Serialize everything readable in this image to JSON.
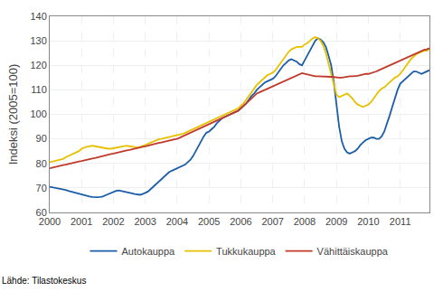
{
  "chart_data": {
    "type": "line",
    "y_label": "Indeksi (2005=100)",
    "annotations": [
      "Lähde: Tilastokeskus"
    ],
    "xlim": [
      2000.0,
      2011.917
    ],
    "xticks": [
      2000,
      2001,
      2002,
      2003,
      2004,
      2005,
      2006,
      2007,
      2008,
      2009,
      2010,
      2011
    ],
    "ylim": [
      60,
      140
    ],
    "yticks": [
      60,
      70,
      80,
      90,
      100,
      110,
      120,
      130,
      140
    ],
    "grid": true,
    "legend": "bottom",
    "x": [
      2000.0,
      2000.083,
      2000.167,
      2000.25,
      2000.333,
      2000.417,
      2000.5,
      2000.583,
      2000.667,
      2000.75,
      2000.833,
      2000.917,
      2001.0,
      2001.083,
      2001.167,
      2001.25,
      2001.333,
      2001.417,
      2001.5,
      2001.583,
      2001.667,
      2001.75,
      2001.833,
      2001.917,
      2002.0,
      2002.083,
      2002.167,
      2002.25,
      2002.333,
      2002.417,
      2002.5,
      2002.583,
      2002.667,
      2002.75,
      2002.833,
      2002.917,
      2003.0,
      2003.083,
      2003.167,
      2003.25,
      2003.333,
      2003.417,
      2003.5,
      2003.583,
      2003.667,
      2003.75,
      2003.833,
      2003.917,
      2004.0,
      2004.083,
      2004.167,
      2004.25,
      2004.333,
      2004.417,
      2004.5,
      2004.583,
      2004.667,
      2004.75,
      2004.833,
      2004.917,
      2005.0,
      2005.083,
      2005.167,
      2005.25,
      2005.333,
      2005.417,
      2005.5,
      2005.583,
      2005.667,
      2005.75,
      2005.833,
      2005.917,
      2006.0,
      2006.083,
      2006.167,
      2006.25,
      2006.333,
      2006.417,
      2006.5,
      2006.583,
      2006.667,
      2006.75,
      2006.833,
      2006.917,
      2007.0,
      2007.083,
      2007.167,
      2007.25,
      2007.333,
      2007.417,
      2007.5,
      2007.583,
      2007.667,
      2007.75,
      2007.833,
      2007.917,
      2008.0,
      2008.083,
      2008.167,
      2008.25,
      2008.333,
      2008.417,
      2008.5,
      2008.583,
      2008.667,
      2008.75,
      2008.833,
      2008.917,
      2009.0,
      2009.083,
      2009.167,
      2009.25,
      2009.333,
      2009.417,
      2009.5,
      2009.583,
      2009.667,
      2009.75,
      2009.833,
      2009.917,
      2010.0,
      2010.083,
      2010.167,
      2010.25,
      2010.333,
      2010.417,
      2010.5,
      2010.583,
      2010.667,
      2010.75,
      2010.833,
      2010.917,
      2011.0,
      2011.083,
      2011.167,
      2011.25,
      2011.333,
      2011.417,
      2011.5,
      2011.583,
      2011.667,
      2011.75,
      2011.833,
      2011.917
    ],
    "series": [
      {
        "name": "Autokauppa",
        "color": "#1a5da8",
        "values": [
          70.5,
          70.3,
          70.1,
          70.0,
          69.8,
          69.5,
          69.2,
          68.8,
          68.5,
          68.2,
          67.8,
          67.5,
          67.2,
          66.9,
          66.7,
          66.5,
          66.3,
          66.2,
          66.2,
          66.3,
          66.5,
          67.0,
          67.5,
          68.0,
          68.5,
          68.8,
          69.0,
          68.8,
          68.5,
          68.3,
          68.0,
          67.8,
          67.5,
          67.3,
          67.2,
          67.5,
          68.0,
          68.5,
          69.5,
          70.5,
          71.5,
          72.5,
          73.5,
          74.5,
          75.5,
          76.5,
          77.0,
          77.5,
          78.0,
          78.5,
          79.0,
          79.5,
          80.5,
          81.5,
          83.0,
          85.0,
          87.5,
          89.5,
          91.0,
          92.5,
          93.0,
          94.0,
          95.0,
          96.5,
          97.5,
          98.5,
          99.0,
          99.5,
          100.0,
          100.5,
          101.0,
          101.5,
          102.5,
          103.5,
          104.5,
          106.0,
          107.5,
          108.5,
          110.0,
          111.0,
          112.0,
          113.0,
          113.5,
          114.0,
          114.5,
          115.5,
          117.0,
          118.5,
          120.0,
          121.0,
          122.0,
          122.5,
          122.0,
          121.5,
          120.5,
          120.0,
          122.0,
          124.0,
          126.5,
          128.5,
          130.0,
          131.0,
          130.5,
          129.5,
          127.5,
          124.0,
          120.0,
          113.0,
          103.0,
          95.0,
          89.0,
          86.0,
          84.5,
          84.0,
          84.5,
          85.0,
          86.0,
          87.5,
          88.5,
          89.5,
          90.0,
          90.5,
          90.5,
          90.0,
          90.0,
          91.0,
          93.0,
          96.0,
          99.5,
          103.0,
          107.0,
          110.0,
          112.5,
          113.5,
          114.5,
          115.5,
          116.5,
          117.5,
          117.5,
          117.0,
          116.5,
          117.0,
          117.5,
          118.0
        ]
      },
      {
        "name": "Tukkukauppa",
        "color": "#e8c000",
        "values": [
          80.5,
          80.8,
          81.0,
          81.2,
          81.5,
          81.8,
          82.5,
          83.0,
          83.5,
          84.0,
          84.5,
          85.0,
          86.0,
          86.5,
          86.8,
          87.0,
          87.2,
          87.0,
          86.8,
          86.5,
          86.2,
          86.0,
          86.0,
          86.0,
          86.2,
          86.3,
          86.5,
          86.8,
          87.0,
          87.2,
          87.0,
          86.8,
          86.5,
          86.5,
          86.7,
          87.0,
          87.5,
          88.0,
          88.5,
          89.0,
          89.5,
          89.8,
          90.0,
          90.2,
          90.5,
          90.8,
          91.0,
          91.3,
          91.5,
          91.8,
          92.0,
          92.5,
          93.0,
          93.5,
          94.0,
          94.5,
          95.0,
          95.5,
          96.0,
          96.5,
          97.0,
          97.5,
          98.0,
          98.5,
          99.0,
          99.5,
          100.0,
          100.5,
          101.0,
          101.5,
          102.0,
          102.5,
          103.5,
          104.5,
          106.0,
          107.5,
          109.0,
          110.5,
          112.0,
          113.0,
          114.0,
          115.0,
          116.0,
          116.5,
          117.0,
          118.0,
          119.5,
          121.0,
          122.5,
          124.0,
          125.5,
          126.5,
          127.0,
          127.5,
          127.5,
          127.5,
          128.5,
          129.0,
          130.0,
          131.0,
          131.5,
          131.0,
          130.0,
          128.0,
          125.0,
          121.0,
          117.0,
          112.0,
          108.0,
          107.0,
          107.5,
          108.0,
          108.5,
          107.5,
          106.5,
          105.0,
          104.0,
          103.5,
          103.0,
          103.5,
          104.0,
          105.0,
          106.5,
          108.0,
          109.5,
          110.5,
          111.0,
          112.0,
          113.0,
          114.0,
          115.0,
          115.5,
          116.5,
          118.0,
          119.5,
          121.0,
          122.5,
          123.5,
          124.5,
          125.0,
          125.5,
          126.0,
          126.0,
          126.5
        ]
      },
      {
        "name": "Vähittäiskauppa",
        "color": "#c0392b",
        "values": [
          78.0,
          78.3,
          78.5,
          78.8,
          79.0,
          79.3,
          79.5,
          79.8,
          80.0,
          80.3,
          80.5,
          80.8,
          81.0,
          81.3,
          81.5,
          81.8,
          82.0,
          82.2,
          82.5,
          82.8,
          83.0,
          83.3,
          83.5,
          83.8,
          84.0,
          84.3,
          84.5,
          84.8,
          85.0,
          85.3,
          85.5,
          85.8,
          86.0,
          86.3,
          86.5,
          86.8,
          87.0,
          87.3,
          87.5,
          87.8,
          88.0,
          88.3,
          88.5,
          88.8,
          89.0,
          89.3,
          89.5,
          89.8,
          90.0,
          90.5,
          91.0,
          91.5,
          92.0,
          92.5,
          93.0,
          93.5,
          94.0,
          94.5,
          95.0,
          95.5,
          96.0,
          96.5,
          97.0,
          97.5,
          98.0,
          98.5,
          99.0,
          99.5,
          100.0,
          100.5,
          101.0,
          101.5,
          102.5,
          103.5,
          104.5,
          105.5,
          106.5,
          107.5,
          108.5,
          109.0,
          109.5,
          110.0,
          110.5,
          111.0,
          111.5,
          112.0,
          112.5,
          113.0,
          113.5,
          114.0,
          114.5,
          115.0,
          115.5,
          116.0,
          116.5,
          116.8,
          116.5,
          116.2,
          116.0,
          115.8,
          115.5,
          115.5,
          115.5,
          115.5,
          115.5,
          115.5,
          115.3,
          115.2,
          115.0,
          115.0,
          115.0,
          115.2,
          115.3,
          115.5,
          115.5,
          115.5,
          115.7,
          116.0,
          116.3,
          116.5,
          116.5,
          116.8,
          117.0,
          117.5,
          118.0,
          118.5,
          119.0,
          119.5,
          120.0,
          120.5,
          121.0,
          121.5,
          122.0,
          122.5,
          123.0,
          123.5,
          124.0,
          124.5,
          125.0,
          125.5,
          126.0,
          126.3,
          126.5,
          127.0
        ]
      }
    ]
  }
}
